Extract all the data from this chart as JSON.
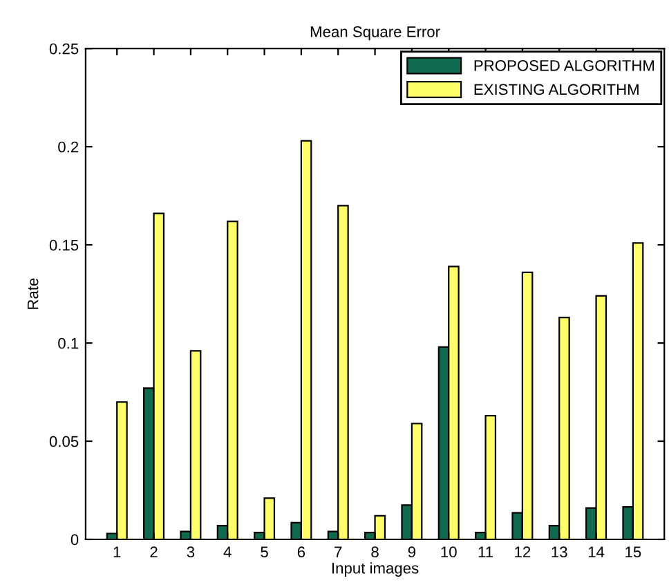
{
  "chart_data": {
    "type": "bar",
    "title": "Mean Square Error",
    "xlabel": "Input images",
    "ylabel": "Rate",
    "categories": [
      "1",
      "2",
      "3",
      "4",
      "5",
      "6",
      "7",
      "8",
      "9",
      "10",
      "11",
      "12",
      "13",
      "14",
      "15"
    ],
    "series": [
      {
        "name": "PROPOSED ALGORITHM",
        "color": "#0f6b4f",
        "values": [
          0.003,
          0.077,
          0.004,
          0.007,
          0.0035,
          0.0085,
          0.004,
          0.0035,
          0.0175,
          0.098,
          0.0035,
          0.0135,
          0.007,
          0.016,
          0.0165
        ]
      },
      {
        "name": "EXISTING ALGORITHM",
        "color": "#ffff66",
        "values": [
          0.07,
          0.166,
          0.096,
          0.162,
          0.021,
          0.203,
          0.17,
          0.012,
          0.059,
          0.139,
          0.063,
          0.136,
          0.113,
          0.124,
          0.151
        ]
      }
    ],
    "ylim": [
      0,
      0.25
    ],
    "yticks": [
      0,
      0.05,
      0.1,
      0.15,
      0.2,
      0.25
    ],
    "grid": false,
    "legend": "top right"
  }
}
